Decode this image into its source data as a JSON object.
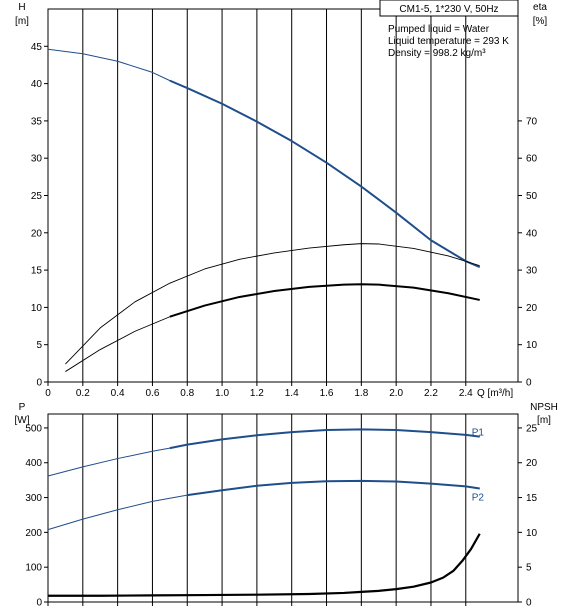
{
  "colors": {
    "blue": "#1f4e8c",
    "black": "#000000",
    "axis": "#000000"
  },
  "info_box": {
    "title": "CM1-5, 1*230 V, 50Hz",
    "lines": [
      "Pumped liquid = Water",
      "Liquid temperature = 293 K",
      "Density = 998.2 kg/m³"
    ]
  },
  "chart_data": [
    {
      "type": "line",
      "panel": "top",
      "x_axis": {
        "label": "Q [m³/h]",
        "range": [
          0,
          2.7
        ],
        "ticks": [
          "0",
          "0.2",
          "0.4",
          "0.6",
          "0.8",
          "1.0",
          "1.2",
          "1.4",
          "1.6",
          "1.8",
          "2.0",
          "2.2",
          "2.4"
        ]
      },
      "y_left": {
        "label": [
          "H",
          "[m]"
        ],
        "range": [
          0,
          50
        ],
        "ticks": [
          "0",
          "5",
          "10",
          "15",
          "20",
          "25",
          "30",
          "35",
          "40",
          "45"
        ]
      },
      "y_right": {
        "label": [
          "eta",
          "[%]"
        ],
        "range": [
          0,
          100
        ],
        "ticks": [
          "0",
          "10",
          "20",
          "30",
          "40",
          "50",
          "60",
          "70"
        ]
      },
      "series": [
        {
          "axis": "left",
          "style": "blue_bold_tail",
          "bold_from_x": 0.7,
          "x": [
            0,
            0.2,
            0.4,
            0.6,
            0.7,
            0.8,
            1.0,
            1.2,
            1.4,
            1.6,
            1.8,
            2.0,
            2.2,
            2.4,
            2.48
          ],
          "y": [
            44.6,
            44.0,
            43.0,
            41.5,
            40.4,
            39.4,
            37.3,
            34.9,
            32.3,
            29.4,
            26.2,
            22.7,
            19.0,
            16.2,
            15.4
          ]
        },
        {
          "axis": "right",
          "style": "black_thin",
          "x": [
            0.1,
            0.3,
            0.5,
            0.7,
            0.9,
            1.1,
            1.3,
            1.5,
            1.7,
            1.8,
            1.9,
            2.1,
            2.3,
            2.48
          ],
          "y": [
            4.8,
            14.5,
            21.5,
            26.5,
            30.3,
            32.9,
            34.6,
            35.9,
            36.8,
            37.1,
            37.0,
            35.8,
            33.8,
            31.2
          ]
        },
        {
          "axis": "right",
          "style": "black_thin_bold_tail",
          "bold_from_x": 0.7,
          "x": [
            0.1,
            0.3,
            0.5,
            0.7,
            0.9,
            1.1,
            1.3,
            1.5,
            1.7,
            1.8,
            1.9,
            2.1,
            2.3,
            2.48
          ],
          "y": [
            2.8,
            8.7,
            13.6,
            17.5,
            20.5,
            22.8,
            24.4,
            25.5,
            26.1,
            26.2,
            26.1,
            25.3,
            23.8,
            22.0
          ]
        }
      ]
    },
    {
      "type": "line",
      "panel": "bottom",
      "x_axis": {
        "range": [
          0,
          2.7
        ]
      },
      "y_left": {
        "label": [
          "P",
          "[W]"
        ],
        "range": [
          0,
          540
        ],
        "ticks": [
          "0",
          "100",
          "200",
          "300",
          "400",
          "500"
        ]
      },
      "y_right": {
        "label": [
          "NPSH",
          "[m]"
        ],
        "range": [
          0,
          27
        ],
        "ticks": [
          "0",
          "5",
          "10",
          "15",
          "20",
          "25"
        ]
      },
      "series": [
        {
          "name": "P1",
          "axis": "left",
          "style": "blue_bold_tail",
          "bold_from_x": 0.7,
          "x": [
            0,
            0.2,
            0.4,
            0.6,
            0.7,
            0.8,
            1.0,
            1.2,
            1.4,
            1.6,
            1.8,
            2.0,
            2.2,
            2.4,
            2.48
          ],
          "y": [
            362,
            388,
            412,
            433,
            442,
            452,
            467,
            479,
            488,
            494,
            496,
            494,
            488,
            480,
            475
          ]
        },
        {
          "name": "P2",
          "axis": "left",
          "style": "blue_bold_tail",
          "bold_from_x": 0.7,
          "x": [
            0,
            0.2,
            0.4,
            0.6,
            0.8,
            1.0,
            1.2,
            1.4,
            1.6,
            1.8,
            2.0,
            2.2,
            2.4,
            2.48
          ],
          "y": [
            208,
            238,
            265,
            289,
            307,
            321,
            334,
            342,
            347,
            348,
            346,
            340,
            332,
            326
          ]
        },
        {
          "axis": "right",
          "style": "black_bold",
          "x": [
            0,
            0.3,
            0.6,
            0.9,
            1.2,
            1.5,
            1.7,
            1.8,
            1.9,
            2.0,
            2.1,
            2.2,
            2.27,
            2.33,
            2.38,
            2.43,
            2.48
          ],
          "y": [
            0.9,
            0.9,
            0.95,
            1.0,
            1.05,
            1.15,
            1.3,
            1.45,
            1.6,
            1.85,
            2.2,
            2.8,
            3.5,
            4.5,
            5.9,
            7.6,
            9.8
          ]
        }
      ]
    }
  ]
}
